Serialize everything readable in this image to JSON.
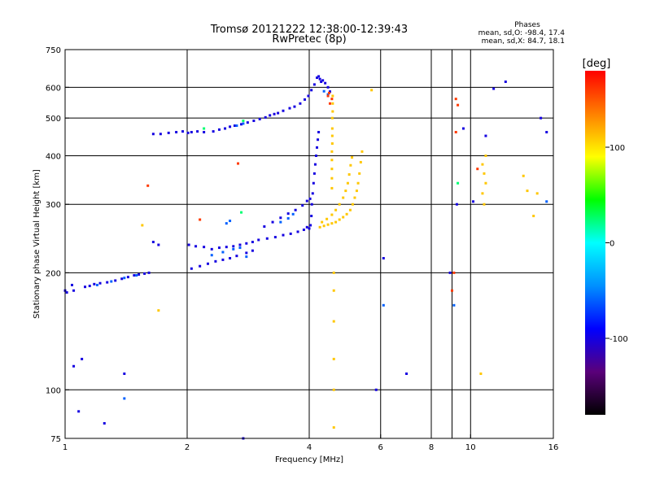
{
  "chart_data": {
    "type": "scatter",
    "title": "Tromsø 20121222 12:38:00-12:39:43",
    "subtitle": "RwPretec (8p)",
    "xlabel": "Frequency [MHz]",
    "ylabel": "Stationary phase Virtual Height [km]",
    "x_scale": "log",
    "y_scale": "log",
    "xlim": [
      1,
      16
    ],
    "ylim": [
      75,
      750
    ],
    "x_ticks": [
      1,
      2,
      4,
      6,
      8,
      10,
      16
    ],
    "x_tick_labels": [
      "1",
      "2",
      "4",
      "6",
      "8",
      "10",
      "16"
    ],
    "y_ticks": [
      75,
      100,
      200,
      300,
      400,
      500,
      600,
      750
    ],
    "y_tick_labels": [
      "75",
      "100",
      "200",
      "300",
      "400",
      "500",
      "600",
      "750"
    ],
    "x_gridlines": [
      2,
      4,
      6,
      8,
      9,
      10
    ],
    "y_gridlines": [
      100,
      200,
      300,
      400,
      500,
      600
    ],
    "grid": true,
    "stats": {
      "title": "Phases",
      "line_o": "mean, sd,O: -98.4, 17.4",
      "line_x": "mean, sd,X:  84.7, 18.1"
    },
    "colorbar": {
      "label": "[deg]",
      "ticks": [
        -100,
        0,
        100
      ],
      "tick_labels": [
        "-100",
        "0",
        "100"
      ],
      "range": [
        -180,
        180
      ],
      "placement": "right",
      "colors": [
        "#000000",
        "#5a007a",
        "#0000ff",
        "#0090ff",
        "#00ffff",
        "#00ff00",
        "#ffff00",
        "#ff8000",
        "#ff0000"
      ]
    },
    "series": [
      {
        "phase_deg": -100,
        "points": [
          [
            1.0,
            180
          ],
          [
            1.01,
            178
          ],
          [
            1.04,
            186
          ],
          [
            1.05,
            180
          ],
          [
            1.12,
            184
          ],
          [
            1.15,
            185
          ],
          [
            1.18,
            187
          ],
          [
            1.22,
            188
          ],
          [
            1.27,
            189
          ],
          [
            1.33,
            191
          ],
          [
            1.38,
            193
          ],
          [
            1.43,
            195
          ],
          [
            1.48,
            197
          ],
          [
            1.52,
            198
          ],
          [
            1.57,
            199
          ],
          [
            1.61,
            200
          ],
          [
            1.65,
            455
          ],
          [
            1.72,
            455
          ],
          [
            1.8,
            458
          ],
          [
            1.88,
            460
          ],
          [
            1.95,
            462
          ],
          [
            2.01,
            458
          ],
          [
            2.05,
            460
          ],
          [
            2.12,
            462
          ],
          [
            2.2,
            460
          ],
          [
            2.32,
            462
          ],
          [
            2.4,
            467
          ],
          [
            2.48,
            470
          ],
          [
            2.55,
            475
          ],
          [
            2.62,
            478
          ],
          [
            2.72,
            482
          ],
          [
            2.82,
            487
          ],
          [
            2.92,
            492
          ],
          [
            3.02,
            497
          ],
          [
            3.12,
            502
          ],
          [
            3.2,
            508
          ],
          [
            3.28,
            512
          ],
          [
            3.35,
            515
          ],
          [
            3.45,
            522
          ],
          [
            3.58,
            530
          ],
          [
            3.68,
            535
          ],
          [
            3.8,
            545
          ],
          [
            3.9,
            558
          ],
          [
            3.98,
            570
          ],
          [
            4.05,
            590
          ],
          [
            4.12,
            610
          ],
          [
            4.18,
            635
          ],
          [
            4.25,
            630
          ],
          [
            4.32,
            625
          ],
          [
            4.38,
            615
          ],
          [
            4.45,
            600
          ],
          [
            4.5,
            585
          ],
          [
            4.22,
            640
          ],
          [
            4.28,
            620
          ],
          [
            4.06,
            300
          ],
          [
            4.08,
            320
          ],
          [
            4.1,
            340
          ],
          [
            4.12,
            360
          ],
          [
            4.14,
            380
          ],
          [
            4.16,
            400
          ],
          [
            4.18,
            420
          ],
          [
            4.2,
            440
          ],
          [
            4.22,
            460
          ],
          [
            4.05,
            280
          ],
          [
            4.03,
            265
          ],
          [
            4.0,
            260
          ],
          [
            3.95,
            262
          ],
          [
            3.88,
            258
          ],
          [
            3.75,
            255
          ],
          [
            3.6,
            252
          ],
          [
            3.45,
            250
          ],
          [
            3.3,
            247
          ],
          [
            3.15,
            245
          ],
          [
            3.0,
            243
          ],
          [
            2.9,
            240
          ],
          [
            2.8,
            238
          ],
          [
            2.7,
            236
          ],
          [
            2.6,
            234
          ],
          [
            2.5,
            233
          ],
          [
            2.4,
            232
          ],
          [
            2.3,
            230
          ],
          [
            2.2,
            233
          ],
          [
            2.1,
            234
          ],
          [
            2.02,
            236
          ],
          [
            3.1,
            263
          ],
          [
            3.25,
            270
          ],
          [
            3.4,
            277
          ],
          [
            3.55,
            284
          ],
          [
            3.7,
            290
          ],
          [
            3.85,
            298
          ],
          [
            3.95,
            306
          ],
          [
            4.02,
            310
          ],
          [
            2.05,
            205
          ],
          [
            2.15,
            208
          ],
          [
            2.25,
            211
          ],
          [
            2.35,
            214
          ],
          [
            2.45,
            216
          ],
          [
            2.55,
            218
          ],
          [
            2.65,
            221
          ],
          [
            2.8,
            225
          ],
          [
            2.9,
            228
          ],
          [
            1.05,
            115
          ],
          [
            1.1,
            120
          ],
          [
            1.4,
            110
          ],
          [
            6.1,
            218
          ],
          [
            6.95,
            110
          ],
          [
            5.85,
            100
          ],
          [
            1.25,
            82
          ],
          [
            1.08,
            88
          ],
          [
            9.25,
            300
          ],
          [
            10.15,
            305
          ],
          [
            12.2,
            620
          ],
          [
            10.9,
            450
          ],
          [
            8.9,
            200
          ],
          [
            11.4,
            595
          ],
          [
            1.65,
            240
          ],
          [
            1.7,
            236
          ],
          [
            9.6,
            470
          ],
          [
            14.9,
            500
          ],
          [
            15.4,
            460
          ],
          [
            2.75,
            75
          ]
        ]
      },
      {
        "phase_deg": -60,
        "points": [
          [
            1.2,
            186
          ],
          [
            1.3,
            190
          ],
          [
            1.4,
            194
          ],
          [
            1.5,
            197
          ],
          [
            2.3,
            222
          ],
          [
            2.45,
            226
          ],
          [
            2.6,
            230
          ],
          [
            2.7,
            232
          ],
          [
            2.8,
            220
          ],
          [
            2.5,
            268
          ],
          [
            2.55,
            272
          ],
          [
            2.65,
            478
          ],
          [
            2.75,
            484
          ],
          [
            3.4,
            270
          ],
          [
            3.55,
            276
          ],
          [
            3.65,
            283
          ],
          [
            4.35,
            586
          ],
          [
            4.45,
            575
          ],
          [
            1.4,
            95
          ],
          [
            6.1,
            165
          ],
          [
            15.4,
            305
          ],
          [
            9.1,
            165
          ]
        ]
      },
      {
        "phase_deg": 25,
        "points": [
          [
            2.75,
            492
          ],
          [
            2.2,
            470
          ],
          [
            9.3,
            340
          ],
          [
            2.72,
            286
          ]
        ]
      },
      {
        "phase_deg": 110,
        "points": [
          [
            4.25,
            262
          ],
          [
            4.35,
            264
          ],
          [
            4.45,
            266
          ],
          [
            4.55,
            268
          ],
          [
            4.65,
            270
          ],
          [
            4.75,
            274
          ],
          [
            4.85,
            278
          ],
          [
            4.95,
            283
          ],
          [
            5.05,
            290
          ],
          [
            5.12,
            300
          ],
          [
            5.18,
            312
          ],
          [
            5.24,
            325
          ],
          [
            5.28,
            340
          ],
          [
            5.32,
            360
          ],
          [
            5.36,
            385
          ],
          [
            5.4,
            410
          ],
          [
            4.3,
            270
          ],
          [
            4.42,
            275
          ],
          [
            4.55,
            282
          ],
          [
            4.65,
            290
          ],
          [
            4.75,
            300
          ],
          [
            4.85,
            312
          ],
          [
            4.92,
            325
          ],
          [
            4.98,
            340
          ],
          [
            5.02,
            358
          ],
          [
            5.06,
            378
          ],
          [
            5.1,
            396
          ],
          [
            4.55,
            330
          ],
          [
            4.55,
            350
          ],
          [
            4.55,
            370
          ],
          [
            4.55,
            390
          ],
          [
            4.55,
            410
          ],
          [
            4.56,
            430
          ],
          [
            4.56,
            450
          ],
          [
            4.56,
            470
          ],
          [
            4.56,
            500
          ],
          [
            4.57,
            520
          ],
          [
            4.57,
            545
          ],
          [
            4.57,
            570
          ],
          [
            4.6,
            200
          ],
          [
            4.6,
            180
          ],
          [
            4.6,
            150
          ],
          [
            4.6,
            120
          ],
          [
            4.6,
            100
          ],
          [
            4.6,
            80
          ],
          [
            5.7,
            590
          ],
          [
            1.7,
            160
          ],
          [
            1.55,
            265
          ],
          [
            10.8,
            300
          ],
          [
            10.7,
            320
          ],
          [
            10.9,
            340
          ],
          [
            10.8,
            360
          ],
          [
            10.7,
            380
          ],
          [
            10.9,
            400
          ],
          [
            10.6,
            110
          ],
          [
            14.3,
            280
          ],
          [
            14.6,
            320
          ],
          [
            13.5,
            355
          ],
          [
            13.8,
            325
          ]
        ]
      },
      {
        "phase_deg": 160,
        "points": [
          [
            9.2,
            560
          ],
          [
            9.3,
            540
          ],
          [
            9.2,
            460
          ],
          [
            4.55,
            560
          ],
          [
            4.5,
            545
          ],
          [
            1.6,
            335
          ],
          [
            2.15,
            274
          ],
          [
            2.67,
            382
          ],
          [
            10.4,
            370
          ],
          [
            9.1,
            200
          ],
          [
            9.0,
            180
          ],
          [
            4.45,
            570
          ],
          [
            4.48,
            580
          ]
        ]
      }
    ]
  }
}
